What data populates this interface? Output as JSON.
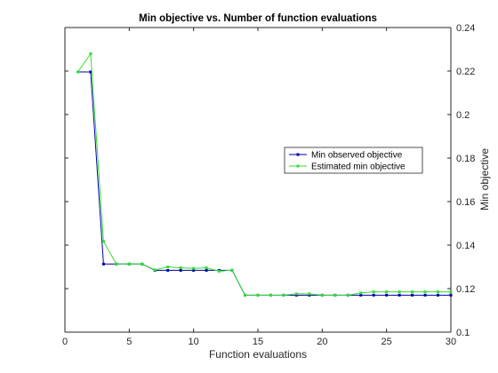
{
  "chart_data": {
    "type": "line",
    "title": "Min objective vs. Number of function evaluations",
    "xlabel": "Function evaluations",
    "ylabel": "Min objective",
    "xlim": [
      0,
      30
    ],
    "ylim": [
      0.1,
      0.24
    ],
    "x_ticks": [
      0,
      5,
      10,
      15,
      20,
      25,
      30
    ],
    "y_ticks": [
      0.1,
      0.12,
      0.14,
      0.16,
      0.18,
      0.2,
      0.22,
      0.24
    ],
    "y_axis_position": "right",
    "grid": false,
    "legend_position": "right",
    "series": [
      {
        "name": "Min observed objective",
        "color": "#0000aa",
        "marker": "square",
        "x": [
          1,
          2,
          3,
          4,
          5,
          6,
          7,
          8,
          9,
          10,
          11,
          12,
          13,
          14,
          15,
          16,
          17,
          18,
          19,
          20,
          21,
          22,
          23,
          24,
          25,
          26,
          27,
          28,
          29,
          30
        ],
        "values": [
          0.2196,
          0.2196,
          0.1313,
          0.1313,
          0.1313,
          0.1313,
          0.1284,
          0.1284,
          0.1284,
          0.1284,
          0.1284,
          0.1284,
          0.1284,
          0.117,
          0.117,
          0.117,
          0.117,
          0.117,
          0.117,
          0.117,
          0.117,
          0.117,
          0.117,
          0.117,
          0.117,
          0.117,
          0.117,
          0.117,
          0.117,
          0.117
        ]
      },
      {
        "name": "Estimated min objective",
        "color": "#33dd33",
        "marker": "square",
        "x": [
          1,
          2,
          3,
          4,
          5,
          6,
          7,
          8,
          9,
          10,
          11,
          12,
          13,
          14,
          15,
          16,
          17,
          18,
          19,
          20,
          21,
          22,
          23,
          24,
          25,
          26,
          27,
          28,
          29,
          30
        ],
        "values": [
          0.2196,
          0.228,
          0.1417,
          0.1313,
          0.1313,
          0.1313,
          0.1286,
          0.13,
          0.1296,
          0.1293,
          0.1296,
          0.128,
          0.1285,
          0.117,
          0.117,
          0.117,
          0.117,
          0.1176,
          0.1176,
          0.117,
          0.117,
          0.117,
          0.118,
          0.1185,
          0.1185,
          0.1185,
          0.1185,
          0.1185,
          0.1185,
          0.1185
        ]
      }
    ]
  }
}
